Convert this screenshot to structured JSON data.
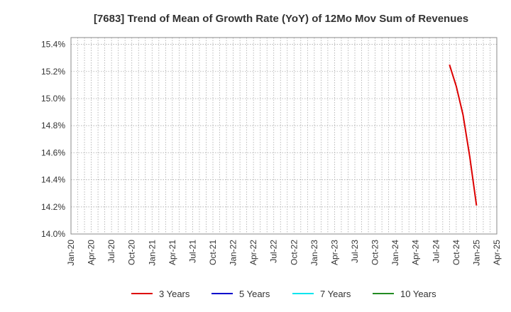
{
  "chart_data": {
    "type": "line",
    "title": "[7683]  Trend of Mean of Growth Rate (YoY) of 12Mo Mov Sum of Revenues",
    "xlabel": "",
    "ylabel": "",
    "x_ticks": [
      "Jan-20",
      "Apr-20",
      "Jul-20",
      "Oct-20",
      "Jan-21",
      "Apr-21",
      "Jul-21",
      "Oct-21",
      "Jan-22",
      "Apr-22",
      "Jul-22",
      "Oct-22",
      "Jan-23",
      "Apr-23",
      "Jul-23",
      "Oct-23",
      "Jan-24",
      "Apr-24",
      "Jul-24",
      "Oct-24",
      "Jan-25",
      "Apr-25"
    ],
    "y_ticks": [
      "14.0%",
      "14.2%",
      "14.4%",
      "14.6%",
      "14.8%",
      "15.0%",
      "15.2%",
      "15.4%"
    ],
    "ylim": [
      14.0,
      15.45
    ],
    "grid": true,
    "legend_position": "bottom",
    "series": [
      {
        "name": "3 Years",
        "color": "#dd0000",
        "points": [
          {
            "x": "Sep-24",
            "y": 15.25
          },
          {
            "x": "Oct-24",
            "y": 15.09
          },
          {
            "x": "Nov-24",
            "y": 14.88
          },
          {
            "x": "Dec-24",
            "y": 14.57
          },
          {
            "x": "Jan-25",
            "y": 14.21
          }
        ]
      },
      {
        "name": "5 Years",
        "color": "#0000cc",
        "points": []
      },
      {
        "name": "7 Years",
        "color": "#00e5ee",
        "points": []
      },
      {
        "name": "10 Years",
        "color": "#228b22",
        "points": []
      }
    ]
  }
}
